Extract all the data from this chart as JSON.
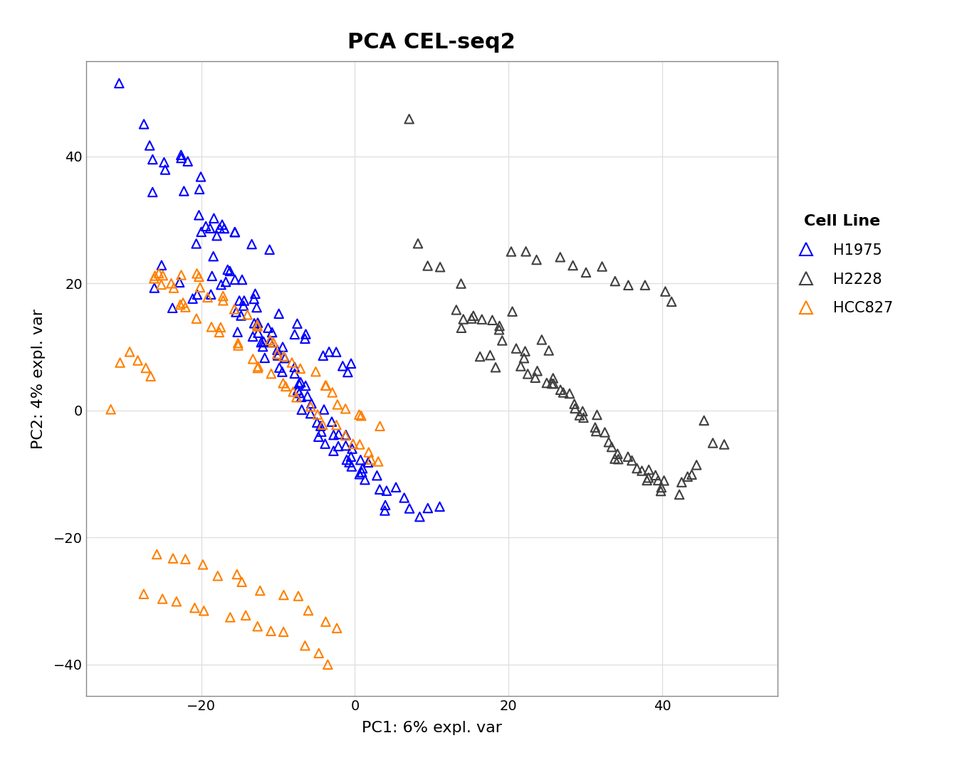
{
  "title": "PCA CEL-seq2",
  "xlabel": "PC1: 6% expl. var",
  "ylabel": "PC2: 4% expl. var",
  "xlim": [
    -35,
    55
  ],
  "ylim": [
    -45,
    55
  ],
  "xticks": [
    -20,
    0,
    20,
    40
  ],
  "yticks": [
    -40,
    -20,
    0,
    20,
    40
  ],
  "background_color": "#FFFFFF",
  "grid_color": "#DEDEDE",
  "title_bg_color": "#BBBBBB",
  "legend_title": "Cell Line",
  "cell_lines": [
    "H1975",
    "H2228",
    "HCC827"
  ],
  "colors": {
    "H1975": "#0000FF",
    "H2228": "#404040",
    "HCC827": "#FF8000"
  },
  "H1975_x": [
    -30.5,
    -28.2,
    -27.1,
    -26.5,
    -25.8,
    -24.3,
    -24.0,
    -23.2,
    -22.8,
    -22.1,
    -21.5,
    -21.0,
    -20.6,
    -20.2,
    -19.8,
    -19.5,
    -19.1,
    -18.9,
    -18.5,
    -18.1,
    -17.8,
    -17.4,
    -17.1,
    -16.8,
    -16.5,
    -16.1,
    -15.8,
    -15.5,
    -15.2,
    -14.9,
    -14.6,
    -14.3,
    -14.0,
    -13.7,
    -13.4,
    -13.1,
    -12.8,
    -12.5,
    -12.2,
    -11.9,
    -11.6,
    -11.3,
    -11.0,
    -10.7,
    -10.4,
    -10.1,
    -9.8,
    -9.5,
    -9.2,
    -8.9,
    -8.6,
    -8.3,
    -8.0,
    -7.7,
    -7.4,
    -7.1,
    -6.8,
    -6.5,
    -6.2,
    -5.9,
    -5.6,
    -5.3,
    -5.0,
    -4.7,
    -4.4,
    -4.1,
    -3.8,
    -3.5,
    -3.2,
    -2.9,
    -2.6,
    -2.3,
    -2.0,
    -1.7,
    -1.4,
    -1.1,
    -0.8,
    -0.5,
    -0.2,
    0.1,
    0.4,
    0.7,
    1.0,
    1.3,
    1.6,
    2.0,
    2.5,
    3.0,
    3.5,
    4.0,
    4.5,
    5.0,
    6.0,
    7.0,
    8.0,
    9.5,
    11.0,
    -26.0,
    -23.0,
    -20.5,
    -18.0,
    -15.5,
    -13.0,
    -11.0,
    -8.5,
    -6.0,
    -4.0,
    -2.0,
    -0.5,
    -24.5,
    -22.5,
    -20.0,
    -17.5,
    -15.0,
    -13.0,
    -10.5,
    -8.0,
    -6.0,
    -4.0,
    -2.5,
    -1.0,
    -19.0,
    -17.0,
    -15.0,
    -13.0,
    -11.0
  ],
  "H1975_y": [
    51.0,
    44.5,
    42.5,
    39.5,
    34.5,
    39.5,
    38.5,
    40.0,
    39.5,
    39.5,
    34.5,
    34.5,
    37.0,
    25.5,
    30.0,
    28.5,
    29.0,
    29.0,
    21.5,
    25.0,
    28.5,
    27.5,
    20.5,
    29.0,
    21.5,
    28.5,
    22.5,
    15.5,
    16.5,
    21.0,
    17.0,
    14.5,
    21.0,
    18.0,
    14.0,
    12.0,
    13.5,
    17.5,
    11.5,
    9.5,
    11.0,
    13.5,
    9.0,
    8.5,
    12.0,
    7.5,
    9.5,
    6.5,
    8.0,
    10.5,
    5.5,
    7.0,
    3.5,
    5.0,
    3.0,
    4.5,
    2.5,
    1.5,
    0.5,
    2.0,
    -1.0,
    1.0,
    -2.5,
    -1.5,
    -3.5,
    -0.5,
    -4.0,
    -2.0,
    -5.0,
    -3.5,
    -6.0,
    -4.5,
    -7.0,
    -6.0,
    -8.0,
    -7.5,
    -5.5,
    -4.5,
    -9.0,
    -6.5,
    -8.5,
    -10.0,
    -7.0,
    -9.5,
    -11.0,
    -8.5,
    -10.5,
    -12.0,
    -13.0,
    -14.5,
    -15.5,
    -12.5,
    -14.0,
    -16.0,
    -17.0,
    -15.5,
    -14.5,
    19.5,
    16.5,
    18.0,
    17.5,
    12.5,
    11.0,
    10.5,
    11.5,
    12.0,
    8.5,
    7.0,
    6.5,
    22.5,
    20.5,
    19.0,
    20.0,
    17.0,
    15.5,
    14.5,
    13.0,
    11.5,
    10.0,
    8.5,
    7.5,
    29.5,
    28.5,
    27.5,
    26.5,
    25.5
  ],
  "H2228_x": [
    6.5,
    8.5,
    10.0,
    11.0,
    12.5,
    13.5,
    14.0,
    14.5,
    15.0,
    15.5,
    16.0,
    16.5,
    17.0,
    17.5,
    18.0,
    18.5,
    19.0,
    19.5,
    20.0,
    20.5,
    21.0,
    21.5,
    22.0,
    22.5,
    23.0,
    23.5,
    24.0,
    24.5,
    25.0,
    25.5,
    26.0,
    26.5,
    27.0,
    27.5,
    28.0,
    28.5,
    29.0,
    29.5,
    30.0,
    30.5,
    31.0,
    31.5,
    32.0,
    32.5,
    33.0,
    33.5,
    34.0,
    34.5,
    35.0,
    35.5,
    36.0,
    36.5,
    37.0,
    37.5,
    38.0,
    38.5,
    39.0,
    39.5,
    40.0,
    40.5,
    41.0,
    41.5,
    42.0,
    43.0,
    44.0,
    45.0,
    46.0,
    47.0,
    48.0,
    20.0,
    22.0,
    24.0,
    26.0,
    28.0,
    30.0,
    32.0,
    34.0,
    36.0,
    38.0,
    40.0,
    42.0
  ],
  "H2228_y": [
    46.5,
    27.0,
    23.5,
    22.0,
    15.5,
    20.0,
    15.0,
    13.0,
    14.5,
    9.0,
    15.0,
    14.5,
    8.5,
    14.0,
    7.5,
    13.5,
    12.5,
    11.0,
    15.0,
    9.5,
    7.5,
    10.0,
    8.0,
    6.5,
    5.0,
    5.5,
    11.0,
    4.5,
    4.0,
    9.5,
    5.0,
    3.5,
    3.0,
    2.5,
    2.0,
    1.5,
    1.0,
    0.5,
    0.0,
    -0.5,
    -1.0,
    -2.0,
    -3.0,
    -4.0,
    -5.0,
    -5.5,
    -6.5,
    -7.0,
    -8.0,
    -7.5,
    -8.5,
    -9.5,
    -10.0,
    -9.0,
    -10.5,
    -11.0,
    -11.5,
    -11.0,
    -12.0,
    -12.5,
    -11.5,
    -13.0,
    -12.0,
    -11.0,
    -10.0,
    -9.0,
    -2.0,
    -4.5,
    -6.0,
    25.0,
    24.5,
    24.0,
    23.5,
    23.0,
    22.5,
    22.0,
    21.0,
    20.0,
    19.0,
    18.0,
    17.0
  ],
  "HCC827_x": [
    -32.0,
    -30.5,
    -29.0,
    -28.0,
    -27.5,
    -27.0,
    -26.5,
    -26.0,
    -25.5,
    -25.0,
    -24.5,
    -24.0,
    -23.5,
    -23.0,
    -22.5,
    -22.0,
    -21.5,
    -21.0,
    -20.5,
    -20.0,
    -19.5,
    -19.0,
    -18.5,
    -18.0,
    -17.5,
    -17.0,
    -16.5,
    -16.0,
    -15.5,
    -15.0,
    -14.5,
    -14.0,
    -13.5,
    -13.0,
    -12.5,
    -12.0,
    -11.5,
    -11.0,
    -10.5,
    -10.0,
    -9.5,
    -9.0,
    -8.5,
    -8.0,
    -7.5,
    -7.0,
    -6.5,
    -6.0,
    -5.5,
    -5.0,
    -4.5,
    -4.0,
    -3.5,
    -3.0,
    -2.5,
    -2.0,
    -1.5,
    -1.0,
    -0.5,
    0.0,
    0.5,
    1.0,
    1.5,
    2.0,
    2.5,
    3.0,
    -26.0,
    -24.0,
    -22.0,
    -20.0,
    -18.0,
    -16.0,
    -14.0,
    -12.0,
    -10.0,
    -8.0,
    -6.0,
    -4.0,
    -2.0,
    -27.0,
    -25.0,
    -23.0,
    -21.0,
    -19.0,
    -17.0,
    -15.0,
    -13.0,
    -11.0,
    -9.0,
    -7.0,
    -5.0,
    -3.0
  ],
  "HCC827_y": [
    -0.5,
    7.0,
    8.5,
    7.5,
    6.5,
    5.5,
    20.5,
    21.0,
    21.5,
    22.0,
    20.0,
    19.5,
    18.5,
    17.5,
    16.5,
    21.5,
    15.5,
    21.0,
    20.5,
    14.5,
    19.5,
    13.5,
    18.5,
    12.5,
    17.5,
    11.5,
    16.5,
    10.5,
    15.5,
    9.5,
    14.5,
    8.5,
    13.5,
    7.5,
    12.5,
    6.5,
    11.5,
    5.5,
    10.5,
    4.5,
    9.5,
    3.5,
    8.5,
    2.5,
    7.5,
    1.5,
    6.5,
    0.5,
    5.5,
    -0.5,
    4.5,
    -1.5,
    3.5,
    -2.5,
    2.5,
    -3.5,
    1.5,
    -4.5,
    0.5,
    -5.5,
    -0.5,
    -6.5,
    -1.5,
    -7.5,
    -2.5,
    -8.5,
    -22.5,
    -23.5,
    -24.0,
    -25.0,
    -25.5,
    -26.5,
    -27.0,
    -28.0,
    -29.0,
    -30.0,
    -31.5,
    -33.0,
    -34.5,
    -28.5,
    -29.0,
    -29.5,
    -30.5,
    -31.0,
    -32.0,
    -32.5,
    -33.5,
    -34.5,
    -35.5,
    -37.0,
    -38.5,
    -39.5
  ]
}
